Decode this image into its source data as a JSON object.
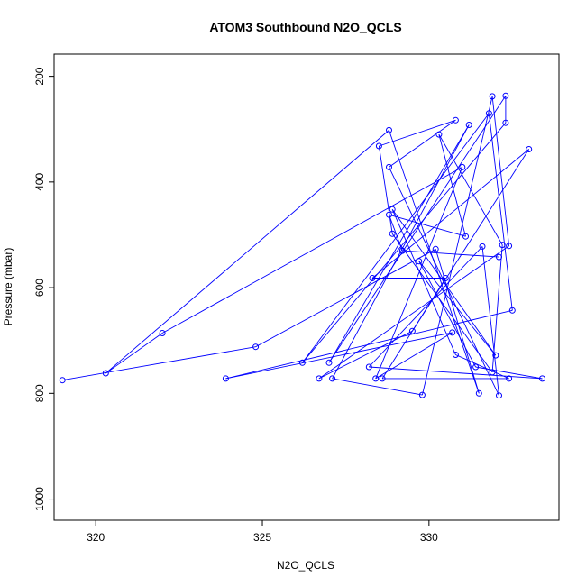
{
  "chart_data": {
    "type": "line",
    "title": "ATOM3 Southbound N2O_QCLS",
    "xlabel": "N2O_QCLS",
    "ylabel": "Pressure (mbar)",
    "xlim": [
      318.75,
      333.9
    ],
    "ylim": [
      1040,
      158
    ],
    "y_reversed": true,
    "x_ticks": [
      320,
      325,
      330
    ],
    "y_ticks": [
      200,
      400,
      600,
      800,
      1000
    ],
    "grid": false,
    "series": [
      {
        "color": "#0000ff",
        "marker": "open-circle",
        "x": [
          319.0,
          324.8,
          330.2,
          331.5,
          328.8,
          320.3,
          322.0,
          331.0,
          328.4,
          330.7,
          323.9,
          332.5,
          331.8,
          326.2,
          332.3,
          332.3,
          327.0,
          331.2,
          327.1,
          329.8,
          331.9,
          332.4,
          326.7,
          329.5,
          333.0,
          328.3,
          330.5,
          328.6,
          332.4,
          330.8,
          328.9,
          332.0,
          329.7,
          331.4,
          333.4,
          328.2,
          331.6,
          332.1,
          328.8,
          330.8,
          328.5,
          328.9,
          331.9,
          332.2,
          330.3,
          331.1,
          328.8,
          329.2,
          332.1
        ],
        "y": [
          775,
          712,
          527,
          800,
          302,
          762,
          686,
          372,
          772,
          685,
          772,
          643,
          270,
          742,
          288,
          237,
          742,
          292,
          772,
          803,
          238,
          521,
          772,
          682,
          338,
          582,
          582,
          772,
          772,
          727,
          452,
          728,
          550,
          750,
          772,
          750,
          522,
          804,
          372,
          283,
          332,
          498,
          760,
          519,
          310,
          503,
          462,
          530,
          542
        ]
      }
    ]
  }
}
